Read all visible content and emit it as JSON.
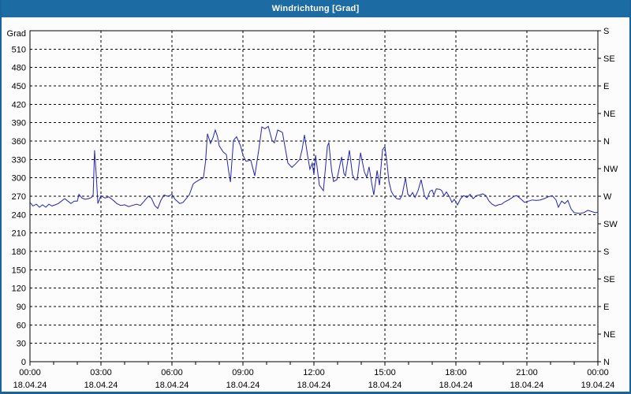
{
  "window": {
    "title": "Windrichtung [Grad]"
  },
  "colors": {
    "titlebar_bg": "#1d6ba3",
    "titlebar_text": "#ffffff",
    "window_border": "#1b649b",
    "chart_bg": "#fcfcfc",
    "plot_frame": "#000000",
    "grid": "#000000",
    "line": "#2424b8",
    "axis_text": "#000000"
  },
  "chart_data": {
    "type": "line",
    "title": "Windrichtung [Grad]",
    "ylabel": "Grad",
    "y_min": 0,
    "y_max": 540,
    "y_tick_step": 30,
    "y_ticks": [
      0,
      30,
      60,
      90,
      120,
      150,
      180,
      210,
      240,
      270,
      300,
      330,
      360,
      390,
      420,
      450,
      480,
      510
    ],
    "right_axis": [
      {
        "value": 540,
        "label": "S"
      },
      {
        "value": 495,
        "label": "SE"
      },
      {
        "value": 450,
        "label": "E"
      },
      {
        "value": 405,
        "label": "NE"
      },
      {
        "value": 360,
        "label": "N"
      },
      {
        "value": 315,
        "label": "NW"
      },
      {
        "value": 270,
        "label": "W"
      },
      {
        "value": 225,
        "label": "SW"
      },
      {
        "value": 180,
        "label": "S"
      },
      {
        "value": 135,
        "label": "SE"
      },
      {
        "value": 90,
        "label": "E"
      },
      {
        "value": 45,
        "label": "NE"
      },
      {
        "value": 0,
        "label": "N"
      }
    ],
    "x_min_hours": 0,
    "x_max_hours": 24,
    "x_major_step_hours": 3,
    "x_minor_step_hours": 1,
    "x_ticks": [
      {
        "hour": 0,
        "time": "00:00",
        "date": "18.04.24"
      },
      {
        "hour": 3,
        "time": "03:00",
        "date": "18.04.24"
      },
      {
        "hour": 6,
        "time": "06:00",
        "date": "18.04.24"
      },
      {
        "hour": 9,
        "time": "09:00",
        "date": "18.04.24"
      },
      {
        "hour": 12,
        "time": "12:00",
        "date": "18.04.24"
      },
      {
        "hour": 15,
        "time": "15:00",
        "date": "18.04.24"
      },
      {
        "hour": 18,
        "time": "18:00",
        "date": "18.04.24"
      },
      {
        "hour": 21,
        "time": "21:00",
        "date": "18.04.24"
      },
      {
        "hour": 24,
        "time": "00:00",
        "date": "19.04.24"
      }
    ],
    "grid_style": "dashed",
    "legend": "none",
    "series": [
      {
        "name": "Windrichtung",
        "color": "#2424b8",
        "points": [
          [
            0,
            260
          ],
          [
            0.13,
            254
          ],
          [
            0.27,
            257
          ],
          [
            0.4,
            252
          ],
          [
            0.53,
            256
          ],
          [
            0.67,
            252
          ],
          [
            0.8,
            257
          ],
          [
            0.93,
            254
          ],
          [
            1.07,
            256
          ],
          [
            1.2,
            258
          ],
          [
            1.33,
            262
          ],
          [
            1.47,
            266
          ],
          [
            1.6,
            262
          ],
          [
            1.73,
            258
          ],
          [
            1.87,
            262
          ],
          [
            2.0,
            262
          ],
          [
            2.07,
            273
          ],
          [
            2.2,
            267
          ],
          [
            2.33,
            265
          ],
          [
            2.47,
            266
          ],
          [
            2.6,
            268
          ],
          [
            2.67,
            272
          ],
          [
            2.73,
            345
          ],
          [
            2.8,
            305
          ],
          [
            2.87,
            258
          ],
          [
            3.0,
            271
          ],
          [
            3.17,
            267
          ],
          [
            3.33,
            269
          ],
          [
            3.5,
            264
          ],
          [
            3.67,
            258
          ],
          [
            3.83,
            255
          ],
          [
            4.0,
            256
          ],
          [
            4.17,
            253
          ],
          [
            4.33,
            255
          ],
          [
            4.5,
            257
          ],
          [
            4.67,
            255
          ],
          [
            4.83,
            262
          ],
          [
            5.0,
            270
          ],
          [
            5.13,
            267
          ],
          [
            5.27,
            255
          ],
          [
            5.4,
            250
          ],
          [
            5.53,
            263
          ],
          [
            5.67,
            272
          ],
          [
            5.8,
            270
          ],
          [
            5.9,
            271
          ],
          [
            6.0,
            273
          ],
          [
            6.13,
            265
          ],
          [
            6.33,
            258
          ],
          [
            6.47,
            260
          ],
          [
            6.6,
            266
          ],
          [
            6.73,
            272
          ],
          [
            6.9,
            290
          ],
          [
            7.0,
            293
          ],
          [
            7.17,
            297
          ],
          [
            7.33,
            300
          ],
          [
            7.42,
            327
          ],
          [
            7.5,
            372
          ],
          [
            7.63,
            356
          ],
          [
            7.73,
            365
          ],
          [
            7.83,
            378
          ],
          [
            7.92,
            368
          ],
          [
            8.0,
            352
          ],
          [
            8.17,
            342
          ],
          [
            8.3,
            338
          ],
          [
            8.4,
            310
          ],
          [
            8.47,
            293
          ],
          [
            8.6,
            361
          ],
          [
            8.73,
            367
          ],
          [
            8.9,
            352
          ],
          [
            9.0,
            337
          ],
          [
            9.13,
            327
          ],
          [
            9.33,
            329
          ],
          [
            9.5,
            303
          ],
          [
            9.67,
            346
          ],
          [
            9.8,
            383
          ],
          [
            9.93,
            380
          ],
          [
            10.07,
            384
          ],
          [
            10.23,
            361
          ],
          [
            10.33,
            357
          ],
          [
            10.47,
            378
          ],
          [
            10.67,
            374
          ],
          [
            10.9,
            324
          ],
          [
            11.07,
            317
          ],
          [
            11.23,
            323
          ],
          [
            11.4,
            330
          ],
          [
            11.5,
            346
          ],
          [
            11.6,
            370
          ],
          [
            11.73,
            337
          ],
          [
            11.83,
            314
          ],
          [
            11.93,
            324
          ],
          [
            12.0,
            305
          ],
          [
            12.07,
            337
          ],
          [
            12.23,
            288
          ],
          [
            12.4,
            279
          ],
          [
            12.57,
            352
          ],
          [
            12.63,
            357
          ],
          [
            12.75,
            311
          ],
          [
            12.83,
            294
          ],
          [
            12.97,
            297
          ],
          [
            13.17,
            334
          ],
          [
            13.27,
            307
          ],
          [
            13.33,
            303
          ],
          [
            13.5,
            345
          ],
          [
            13.63,
            305
          ],
          [
            13.73,
            297
          ],
          [
            13.83,
            297
          ],
          [
            13.97,
            341
          ],
          [
            14.13,
            310
          ],
          [
            14.23,
            301
          ],
          [
            14.33,
            318
          ],
          [
            14.43,
            294
          ],
          [
            14.53,
            272
          ],
          [
            14.67,
            312
          ],
          [
            14.77,
            288
          ],
          [
            14.9,
            346
          ],
          [
            15.0,
            351
          ],
          [
            15.1,
            320
          ],
          [
            15.17,
            294
          ],
          [
            15.27,
            278
          ],
          [
            15.37,
            271
          ],
          [
            15.5,
            266
          ],
          [
            15.63,
            265
          ],
          [
            15.73,
            272
          ],
          [
            15.87,
            300
          ],
          [
            15.97,
            273
          ],
          [
            16.07,
            270
          ],
          [
            16.17,
            276
          ],
          [
            16.27,
            268
          ],
          [
            16.4,
            279
          ],
          [
            16.53,
            297
          ],
          [
            16.67,
            271
          ],
          [
            16.77,
            265
          ],
          [
            16.9,
            278
          ],
          [
            17.0,
            280
          ],
          [
            17.07,
            272
          ],
          [
            17.17,
            282
          ],
          [
            17.33,
            281
          ],
          [
            17.4,
            279
          ],
          [
            17.5,
            271
          ],
          [
            17.6,
            277
          ],
          [
            17.73,
            269
          ],
          [
            17.83,
            260
          ],
          [
            17.93,
            265
          ],
          [
            18.07,
            256
          ],
          [
            18.2,
            266
          ],
          [
            18.33,
            271
          ],
          [
            18.47,
            268
          ],
          [
            18.6,
            273
          ],
          [
            18.73,
            266
          ],
          [
            18.87,
            271
          ],
          [
            19.0,
            272
          ],
          [
            19.13,
            274
          ],
          [
            19.27,
            271
          ],
          [
            19.4,
            262
          ],
          [
            19.53,
            257
          ],
          [
            19.67,
            254
          ],
          [
            19.8,
            256
          ],
          [
            19.93,
            257
          ],
          [
            20.07,
            261
          ],
          [
            20.23,
            264
          ],
          [
            20.47,
            270
          ],
          [
            20.57,
            271
          ],
          [
            20.73,
            266
          ],
          [
            20.9,
            260
          ],
          [
            21.07,
            262
          ],
          [
            21.23,
            264
          ],
          [
            21.4,
            263
          ],
          [
            21.57,
            264
          ],
          [
            21.73,
            266
          ],
          [
            21.9,
            269
          ],
          [
            22.07,
            271
          ],
          [
            22.23,
            264
          ],
          [
            22.33,
            252
          ],
          [
            22.47,
            262
          ],
          [
            22.6,
            258
          ],
          [
            22.73,
            263
          ],
          [
            22.87,
            249
          ],
          [
            23.0,
            243
          ],
          [
            23.23,
            242
          ],
          [
            23.4,
            243
          ],
          [
            23.57,
            247
          ],
          [
            23.73,
            245
          ],
          [
            23.9,
            243
          ],
          [
            24.0,
            244
          ]
        ]
      }
    ]
  }
}
